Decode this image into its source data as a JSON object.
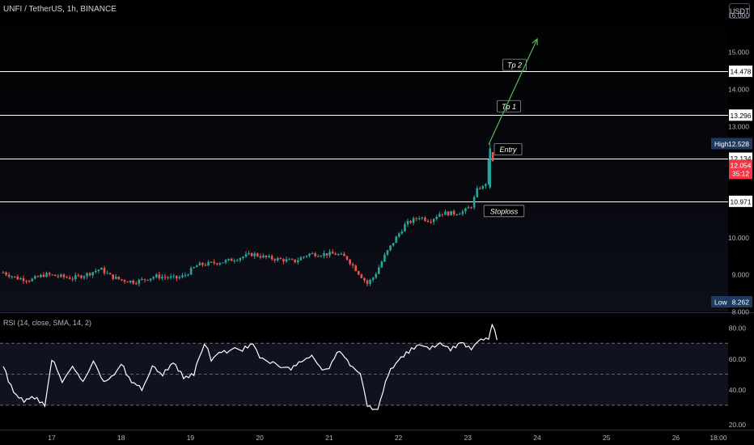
{
  "header": {
    "symbol_line": "UNFI / TetherUS, 1h, BINANCE",
    "currency_button": "USDT"
  },
  "rsi": {
    "header": "RSI (14, close, SMA, 14, 2)",
    "y_ticks": [
      "80.00",
      "60.00",
      "40.00",
      "20.00"
    ],
    "levels": [
      70,
      50,
      30
    ],
    "color": "#ffffff"
  },
  "price_axis": {
    "ticks": [
      "16.000",
      "15.000",
      "14.000",
      "13.000",
      "10.000",
      "9.000",
      "8.000"
    ],
    "high_label": "High",
    "high_value": "12.528",
    "low_label": "Low",
    "low_value": "8.262",
    "last_price": "12.054",
    "countdown": "35:12"
  },
  "time_axis": {
    "labels": [
      "17",
      "18",
      "19",
      "20",
      "21",
      "22",
      "23",
      "24",
      "25",
      "26",
      "18:00"
    ]
  },
  "colors": {
    "up": "#26a69a",
    "down": "#ef5350",
    "background": "#000000",
    "level_line": "#ffffff",
    "arrow": "#4caf50",
    "label_high": "#1e3a5f",
    "label_last": "#f23645"
  },
  "chart_data": {
    "type": "candlestick",
    "title": "UNFI / TetherUS, 1h, BINANCE",
    "ylim": [
      8.0,
      16.4
    ],
    "x_start_day": 16.3,
    "x_end_day": 26.8,
    "levels": [
      {
        "name": "Tp 2",
        "value": 14.478
      },
      {
        "name": "Tp 1",
        "value": 13.296
      },
      {
        "name": "Entry",
        "value": 12.134
      },
      {
        "name": "Stoploss",
        "value": 10.971
      }
    ],
    "projection_arrow": {
      "from": {
        "day": 23.3,
        "price": 12.5
      },
      "to": {
        "day": 24.0,
        "price": 15.35
      }
    },
    "anchors": [
      [
        16.3,
        9.05
      ],
      [
        16.5,
        8.9
      ],
      [
        16.7,
        8.85
      ],
      [
        16.9,
        9.0
      ],
      [
        17.1,
        8.95
      ],
      [
        17.3,
        8.9
      ],
      [
        17.5,
        9.0
      ],
      [
        17.7,
        9.15
      ],
      [
        17.85,
        8.95
      ],
      [
        18.0,
        8.85
      ],
      [
        18.2,
        8.8
      ],
      [
        18.5,
        8.95
      ],
      [
        18.8,
        8.9
      ],
      [
        18.9,
        8.95
      ],
      [
        19.1,
        9.25
      ],
      [
        19.3,
        9.3
      ],
      [
        19.5,
        9.35
      ],
      [
        19.7,
        9.45
      ],
      [
        19.9,
        9.55
      ],
      [
        20.1,
        9.45
      ],
      [
        20.3,
        9.4
      ],
      [
        20.5,
        9.35
      ],
      [
        20.7,
        9.55
      ],
      [
        20.9,
        9.55
      ],
      [
        21.1,
        9.55
      ],
      [
        21.25,
        9.45
      ],
      [
        21.4,
        9.1
      ],
      [
        21.55,
        8.75
      ],
      [
        21.65,
        8.95
      ],
      [
        21.8,
        9.5
      ],
      [
        21.95,
        9.95
      ],
      [
        22.1,
        10.35
      ],
      [
        22.3,
        10.55
      ],
      [
        22.45,
        10.45
      ],
      [
        22.6,
        10.65
      ],
      [
        22.8,
        10.65
      ],
      [
        22.95,
        10.7
      ],
      [
        23.05,
        10.85
      ],
      [
        23.15,
        11.35
      ],
      [
        23.25,
        11.35
      ],
      [
        23.3,
        12.05
      ]
    ],
    "rsi_anchors": [
      [
        16.3,
        55
      ],
      [
        16.45,
        38
      ],
      [
        16.6,
        33
      ],
      [
        16.75,
        35
      ],
      [
        16.9,
        30
      ],
      [
        17.0,
        60
      ],
      [
        17.15,
        45
      ],
      [
        17.3,
        55
      ],
      [
        17.45,
        45
      ],
      [
        17.6,
        58
      ],
      [
        17.75,
        45
      ],
      [
        17.9,
        50
      ],
      [
        18.0,
        57
      ],
      [
        18.15,
        45
      ],
      [
        18.3,
        40
      ],
      [
        18.45,
        55
      ],
      [
        18.6,
        50
      ],
      [
        18.75,
        58
      ],
      [
        18.9,
        48
      ],
      [
        19.05,
        50
      ],
      [
        19.2,
        70
      ],
      [
        19.3,
        60
      ],
      [
        19.45,
        64
      ],
      [
        19.6,
        66
      ],
      [
        19.75,
        66
      ],
      [
        19.9,
        70
      ],
      [
        20.0,
        60
      ],
      [
        20.15,
        58
      ],
      [
        20.3,
        55
      ],
      [
        20.45,
        54
      ],
      [
        20.6,
        58
      ],
      [
        20.75,
        62
      ],
      [
        20.9,
        52
      ],
      [
        21.0,
        55
      ],
      [
        21.15,
        66
      ],
      [
        21.3,
        55
      ],
      [
        21.45,
        50
      ],
      [
        21.55,
        30
      ],
      [
        21.7,
        27
      ],
      [
        21.85,
        50
      ],
      [
        22.0,
        60
      ],
      [
        22.15,
        65
      ],
      [
        22.3,
        70
      ],
      [
        22.45,
        66
      ],
      [
        22.6,
        70
      ],
      [
        22.75,
        66
      ],
      [
        22.9,
        70
      ],
      [
        23.05,
        66
      ],
      [
        23.15,
        71
      ],
      [
        23.3,
        73
      ],
      [
        23.35,
        83
      ],
      [
        23.42,
        72
      ]
    ]
  }
}
